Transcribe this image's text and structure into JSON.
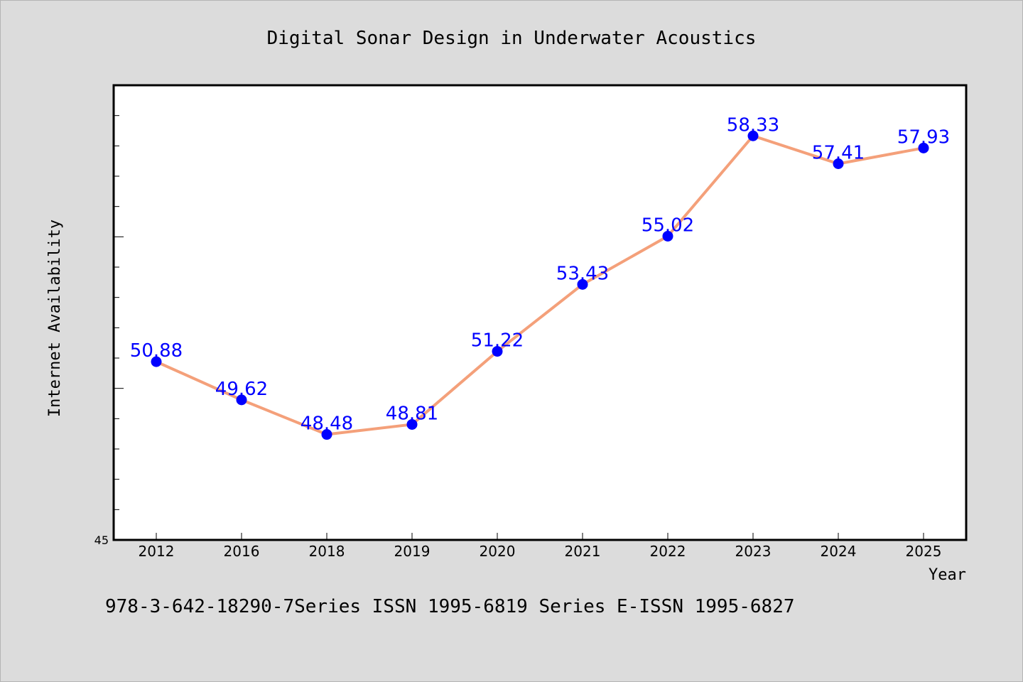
{
  "chart_data": {
    "type": "line",
    "title": "Digital Sonar Design in Underwater Acoustics",
    "xlabel": "Year",
    "ylabel": "Internet Availability",
    "categories": [
      "2012",
      "2016",
      "2018",
      "2019",
      "2020",
      "2021",
      "2022",
      "2023",
      "2024",
      "2025"
    ],
    "values": [
      50.88,
      49.62,
      48.48,
      48.81,
      51.22,
      53.43,
      55.02,
      58.33,
      57.41,
      57.93
    ],
    "data_labels": [
      "50.88",
      "49.62",
      "48.48",
      "48.81",
      "51.22",
      "53.43",
      "55.02",
      "58.33",
      "57.41",
      "57.93"
    ],
    "ylim": [
      45,
      60
    ],
    "y_tick_labels": [
      "45"
    ],
    "grid": false,
    "legend": "none",
    "colors": {
      "line": "#f4a07a",
      "marker": "#0000ff",
      "label": "#0000ff",
      "background": "#dcdcdc",
      "plot_background": "#ffffff"
    }
  },
  "footer": {
    "text": "978-3-642-18290-7Series ISSN 1995-6819 Series E-ISSN 1995-6827"
  }
}
